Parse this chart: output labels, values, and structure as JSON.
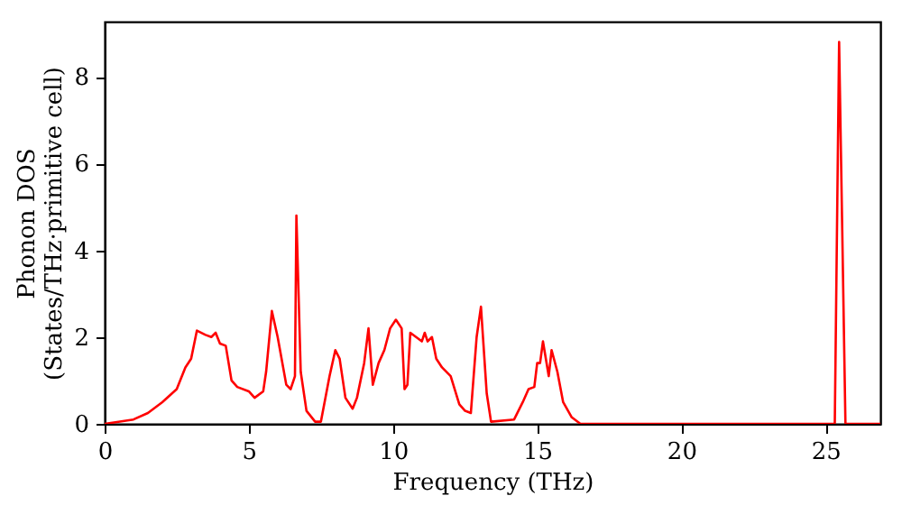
{
  "chart_data": {
    "type": "line",
    "xlabel": "Frequency (THz)",
    "ylabel": "Phonon DOS\n(States/THz·primitive cell)",
    "xlim": [
      0,
      26.9
    ],
    "ylim": [
      0,
      9.27
    ],
    "xticks": [
      0,
      5,
      10,
      15,
      20,
      25
    ],
    "yticks": [
      0,
      2,
      4,
      6,
      8
    ],
    "grid": false,
    "marker": "none",
    "line_style": "solid",
    "series": [
      {
        "color": "#ff0000",
        "x": [
          0,
          1,
          1.5,
          2,
          2.5,
          2.8,
          3.0,
          3.2,
          3.5,
          3.7,
          3.85,
          4.0,
          4.2,
          4.4,
          4.6,
          5.0,
          5.2,
          5.5,
          5.6,
          5.8,
          6.0,
          6.3,
          6.45,
          6.6,
          6.65,
          6.8,
          7.0,
          7.3,
          7.5,
          7.8,
          8.0,
          8.15,
          8.35,
          8.6,
          8.75,
          9.0,
          9.15,
          9.3,
          9.5,
          9.7,
          9.9,
          10.1,
          10.3,
          10.4,
          10.5,
          10.6,
          10.8,
          11.0,
          11.1,
          11.2,
          11.35,
          11.5,
          11.7,
          12.0,
          12.3,
          12.5,
          12.7,
          12.9,
          13.05,
          13.25,
          13.4,
          14.2,
          14.5,
          14.7,
          14.9,
          15.0,
          15.1,
          15.2,
          15.4,
          15.5,
          15.7,
          15.9,
          16.2,
          16.5,
          25.32,
          25.47,
          25.69,
          26.9
        ],
        "values": [
          0,
          0.1,
          0.25,
          0.5,
          0.8,
          1.3,
          1.5,
          2.15,
          2.05,
          2.0,
          2.1,
          1.85,
          1.8,
          1.0,
          0.85,
          0.75,
          0.6,
          0.75,
          1.2,
          2.6,
          2.0,
          0.9,
          0.8,
          1.1,
          4.8,
          1.2,
          0.3,
          0.05,
          0.05,
          1.1,
          1.7,
          1.5,
          0.6,
          0.35,
          0.6,
          1.4,
          2.2,
          0.9,
          1.4,
          1.7,
          2.2,
          2.4,
          2.2,
          0.8,
          0.9,
          2.1,
          2.0,
          1.9,
          2.1,
          1.9,
          2.0,
          1.5,
          1.3,
          1.1,
          0.45,
          0.3,
          0.25,
          2.0,
          2.7,
          0.7,
          0.05,
          0.1,
          0.5,
          0.8,
          0.85,
          1.4,
          1.4,
          1.9,
          1.1,
          1.7,
          1.2,
          0.5,
          0.15,
          0,
          0,
          8.8,
          0,
          0
        ]
      }
    ]
  }
}
